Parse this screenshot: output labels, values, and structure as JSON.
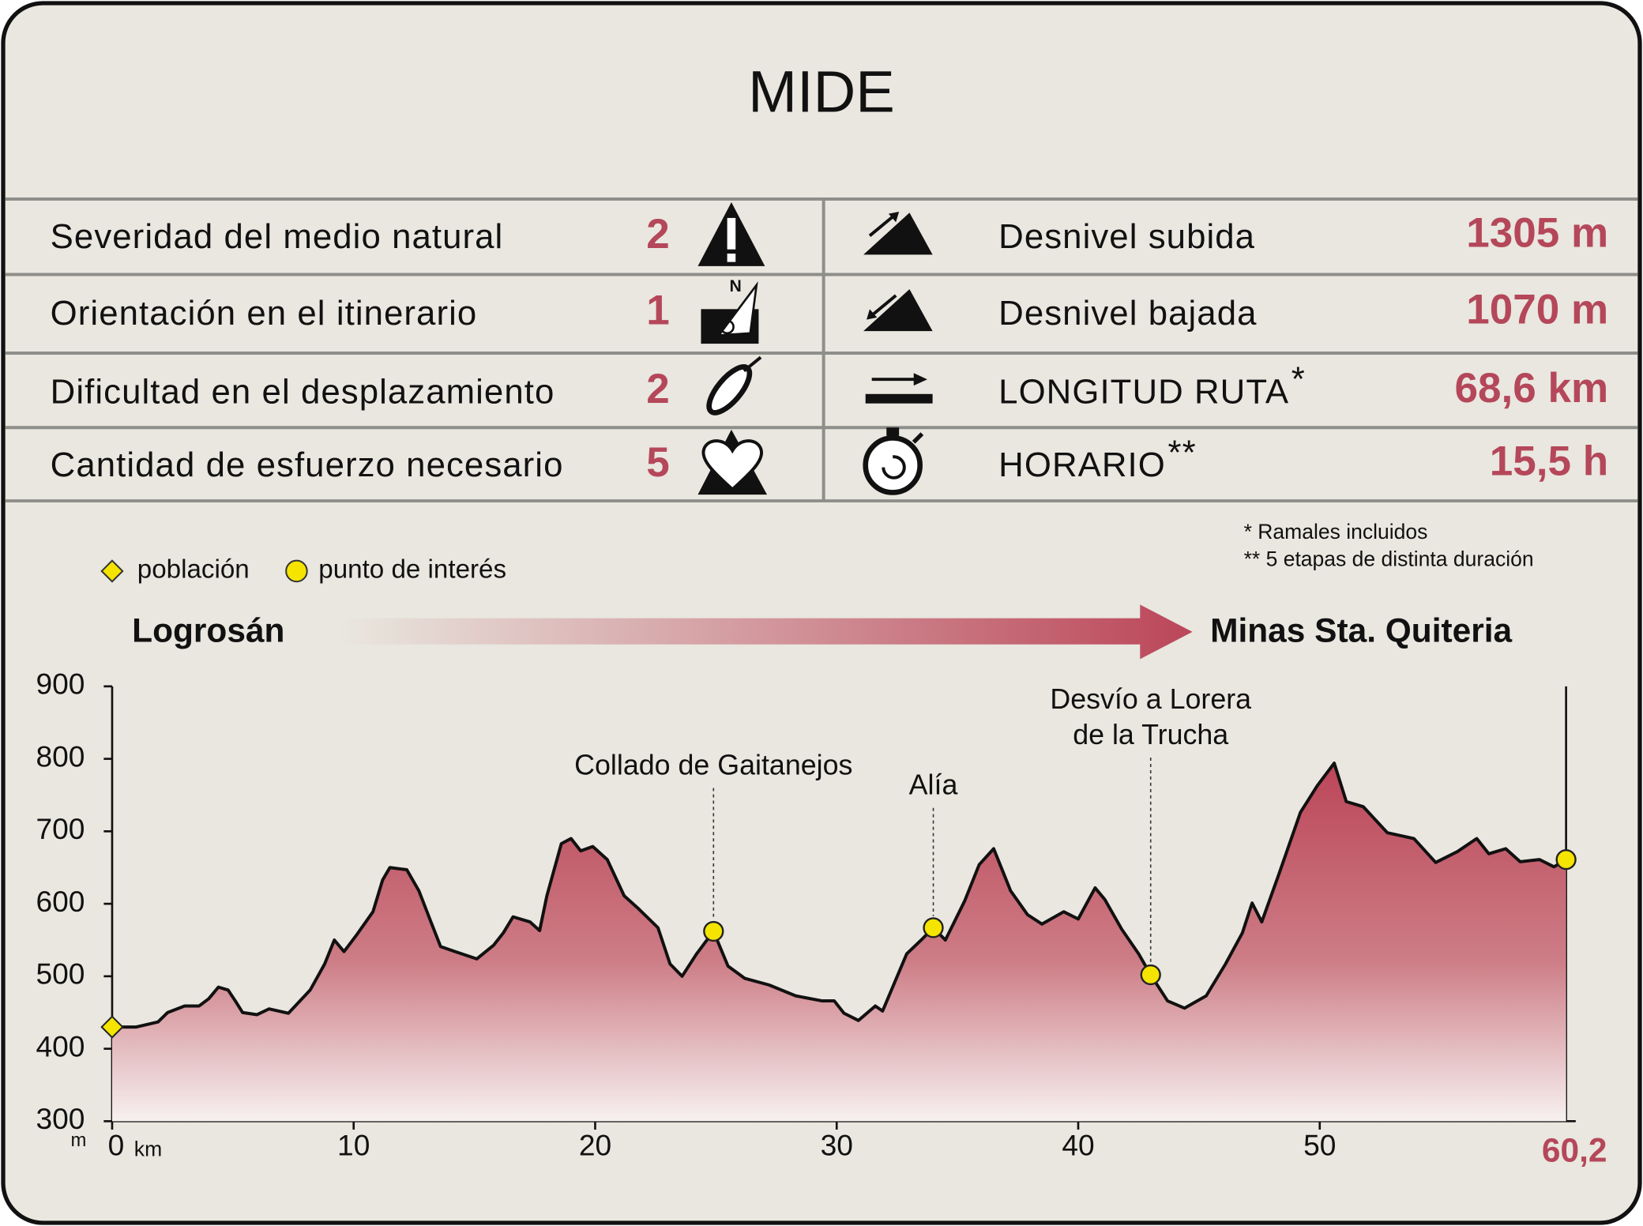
{
  "mide": {
    "title": "MIDE",
    "left": [
      {
        "label": "Severidad del medio natural",
        "value": "2"
      },
      {
        "label": "Orientación en el itinerario",
        "value": "1"
      },
      {
        "label": "Dificultad en el desplazamiento",
        "value": "2"
      },
      {
        "label": "Cantidad de esfuerzo necesario",
        "value": "5"
      }
    ],
    "right": [
      {
        "label": "Desnivel subida",
        "value": "1305 m"
      },
      {
        "label": "Desnivel bajada",
        "value": "1070 m"
      },
      {
        "label": "LONGITUD RUTA",
        "mark": "*",
        "value": "68,6 km"
      },
      {
        "label": "HORARIO",
        "mark": "**",
        "value": "15,5 h"
      }
    ],
    "notes": [
      "* Ramales incluidos",
      "** 5 etapas de distinta duración"
    ]
  },
  "chart_data": {
    "type": "area",
    "route": {
      "from": "Logrosán",
      "to": "Minas Sta. Quiteria"
    },
    "legend": {
      "town": "población",
      "poi": "punto de interés"
    },
    "x": [
      0,
      1.0,
      1.9,
      2.3,
      3.0,
      3.6,
      4.0,
      4.4,
      4.8,
      5.1,
      5.4,
      6.0,
      6.5,
      7.3,
      8.2,
      8.8,
      9.2,
      9.6,
      10.1,
      10.8,
      11.2,
      11.5,
      12.2,
      12.7,
      13.2,
      13.6,
      14.2,
      15.1,
      15.8,
      16.2,
      16.6,
      17.3,
      17.7,
      18.0,
      18.6,
      19.0,
      19.4,
      19.9,
      20.5,
      21.2,
      21.8,
      22.6,
      23.1,
      23.6,
      24.2,
      24.9,
      25.5,
      26.2,
      27.2,
      28.3,
      29.4,
      29.9,
      30.3,
      30.9,
      31.6,
      31.9,
      32.9,
      33.5,
      34.0,
      34.5,
      35.3,
      35.9,
      36.5,
      37.2,
      37.9,
      38.5,
      39.4,
      40.0,
      40.7,
      41.1,
      41.8,
      42.5,
      43.0,
      43.7,
      44.4,
      45.3,
      46.1,
      46.8,
      47.2,
      47.6,
      48.3,
      49.2,
      49.9,
      50.6,
      51.1,
      51.8,
      52.8,
      53.9,
      54.8,
      55.7,
      56.5,
      57.0,
      57.7,
      58.3,
      59.1,
      59.7,
      60.2
    ],
    "values": [
      430,
      430,
      437,
      450,
      459,
      459,
      469,
      485,
      481,
      466,
      450,
      447,
      455,
      449,
      481,
      517,
      550,
      534,
      556,
      589,
      633,
      650,
      647,
      618,
      575,
      541,
      534,
      524,
      543,
      560,
      582,
      575,
      563,
      611,
      683,
      690,
      673,
      679,
      661,
      611,
      593,
      567,
      517,
      500,
      531,
      562,
      514,
      497,
      488,
      473,
      466,
      466,
      449,
      439,
      459,
      452,
      531,
      550,
      567,
      550,
      604,
      654,
      676,
      618,
      585,
      572,
      589,
      579,
      622,
      606,
      565,
      531,
      502,
      466,
      456,
      473,
      517,
      560,
      601,
      575,
      640,
      726,
      763,
      794,
      741,
      734,
      698,
      690,
      657,
      672,
      690,
      669,
      676,
      658,
      661,
      651,
      661
    ],
    "color": "#bb4659",
    "xlim": [
      0,
      60.6
    ],
    "ylim": [
      300,
      900
    ],
    "xticks": [
      0,
      10,
      20,
      30,
      40,
      50,
      {
        "value": 60.2,
        "label": "60,2"
      }
    ],
    "yticks": [
      300,
      400,
      500,
      600,
      700,
      800,
      900
    ],
    "x_unit": "km",
    "y_unit": "m",
    "towns": [
      {
        "x": 0,
        "y": 430
      }
    ],
    "points_of_interest": [
      {
        "x": 24.9,
        "y": 562,
        "label": [
          "Collado de Gaitanejos"
        ]
      },
      {
        "x": 34.0,
        "y": 567,
        "label": [
          "Alía"
        ]
      },
      {
        "x": 43.0,
        "y": 502,
        "label": [
          "Desvío a Lorera",
          "de la Trucha"
        ]
      },
      {
        "x": 60.2,
        "y": 661
      }
    ]
  }
}
